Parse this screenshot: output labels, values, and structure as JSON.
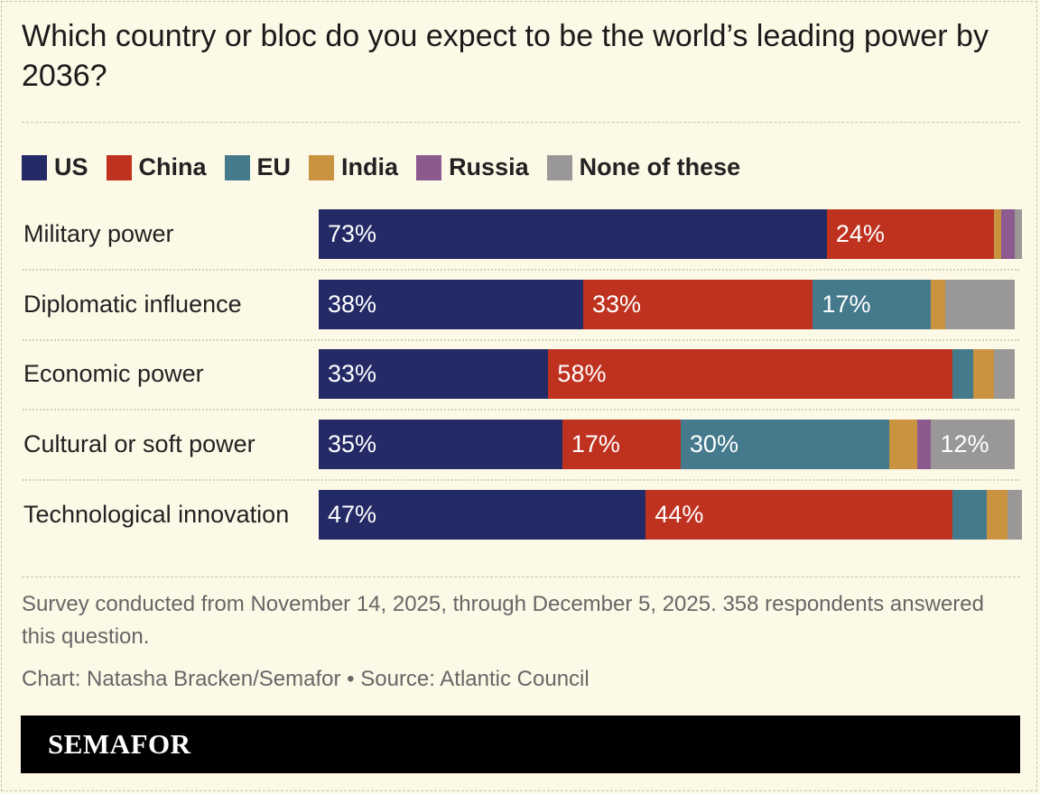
{
  "title": "Which country or bloc do you expect to be the world’s leading power by 2036?",
  "chart_data": {
    "type": "bar",
    "orientation": "horizontal",
    "stacked": true,
    "unit": "%",
    "xlim": [
      0,
      100
    ],
    "legend_position": "top-left",
    "categories": [
      "Military power",
      "Diplomatic influence",
      "Economic power",
      "Cultural or soft power",
      "Technological innovation"
    ],
    "series": [
      {
        "name": "US",
        "color": "#232a66",
        "values": [
          73,
          38,
          33,
          35,
          47
        ]
      },
      {
        "name": "China",
        "color": "#bf3220",
        "values": [
          24,
          33,
          58,
          17,
          44
        ]
      },
      {
        "name": "EU",
        "color": "#45798c",
        "values": [
          0,
          17,
          3,
          30,
          5
        ]
      },
      {
        "name": "India",
        "color": "#c99340",
        "values": [
          1,
          2,
          3,
          4,
          3
        ]
      },
      {
        "name": "Russia",
        "color": "#8c5a8e",
        "values": [
          2,
          0,
          0,
          2,
          0
        ]
      },
      {
        "name": "None of these",
        "color": "#999896",
        "values": [
          1,
          10,
          3,
          12,
          2
        ]
      }
    ],
    "labelled_values": [
      [
        "73%",
        "24%"
      ],
      [
        "38%",
        "33%",
        "17%"
      ],
      [
        "33%",
        "58%"
      ],
      [
        "35%",
        "17%",
        "30%",
        "12%"
      ],
      [
        "47%",
        "44%"
      ]
    ]
  },
  "footnote": "Survey conducted from November 14, 2025, through December 5, 2025. 358 respondents answered this question.",
  "credit": "Chart: Natasha Bracken/Semafor • Source: Atlantic Council",
  "brand": "SEMAFOR"
}
